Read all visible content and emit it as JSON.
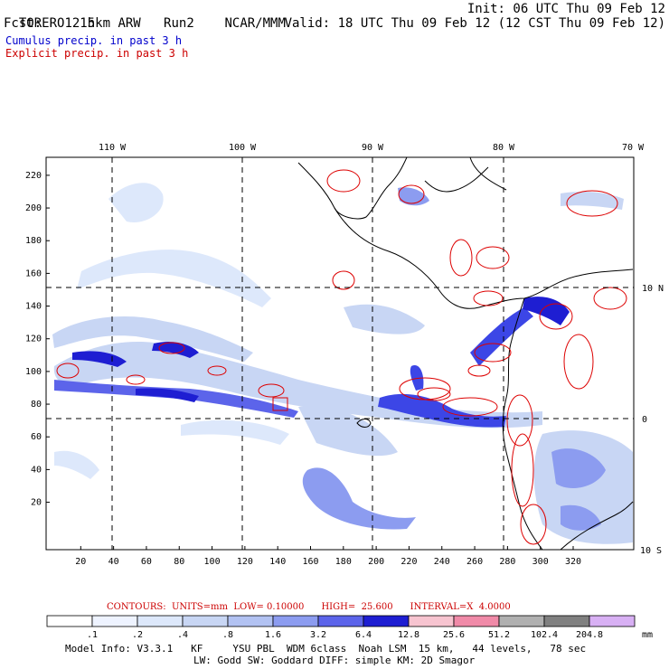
{
  "header": {
    "model": "TORERO",
    "resolution": "15km ARW",
    "run": "Run2",
    "org": "NCAR/MMM",
    "init": "Init: 06 UTC Thu 09 Feb 12",
    "fcst_label": "Fcst:",
    "fcst_value": "12 h",
    "valid": "Valid: 18 UTC Thu 09 Feb 12 (12 CST Thu 09 Feb 12)"
  },
  "legend_lines": {
    "cumulus": "Cumulus precip. in past 3 h",
    "explicit": "Explicit precip. in past 3 h"
  },
  "map": {
    "top_lon_labels": [
      "110 W",
      "100 W",
      "90 W",
      "80 W",
      "70 W"
    ],
    "right_lat_labels": [
      "10 N",
      "0",
      "10 S"
    ],
    "left_ticks": [
      "220",
      "200",
      "180",
      "160",
      "140",
      "120",
      "100",
      "80",
      "60",
      "40",
      "20"
    ],
    "bottom_ticks": [
      "20",
      "40",
      "60",
      "80",
      "100",
      "120",
      "140",
      "160",
      "180",
      "200",
      "220",
      "240",
      "260",
      "280",
      "300",
      "320"
    ],
    "colors": {
      "cumulus_light": "#c8d6f4",
      "cumulus_mid": "#8c9cf0",
      "cumulus_dark": "#3c46e6",
      "cumulus_deep": "#1e1ed2",
      "explicit_contour": "#dd0000",
      "coastline": "#000000",
      "grid": "#000000"
    }
  },
  "contour_info": {
    "text": "CONTOURS:  UNITS=mm  LOW= 0.10000      HIGH=  25.600      INTERVAL=X  4.0000"
  },
  "colorbar": {
    "labels": [
      ".1",
      ".2",
      ".4",
      ".8",
      "1.6",
      "3.2",
      "6.4",
      "12.8",
      "25.6",
      "51.2",
      "102.4",
      "204.8"
    ],
    "unit": "mm",
    "colors": [
      "#ffffff",
      "#eef3ff",
      "#dde8fb",
      "#c8d6f4",
      "#b2c2f2",
      "#8c9cf0",
      "#5c64ea",
      "#1e1ed2",
      "#f7c4d0",
      "#f08aa8",
      "#b0b0b0",
      "#808080",
      "#d8b0f4"
    ]
  },
  "footer": {
    "line1": "Model Info: V3.3.1   KF     YSU PBL  WDM 6class  Noah LSM  15 km,   44 levels,   78 sec",
    "line2": "LW: Godd SW: Goddard DIFF: simple KM: 2D Smagor"
  }
}
